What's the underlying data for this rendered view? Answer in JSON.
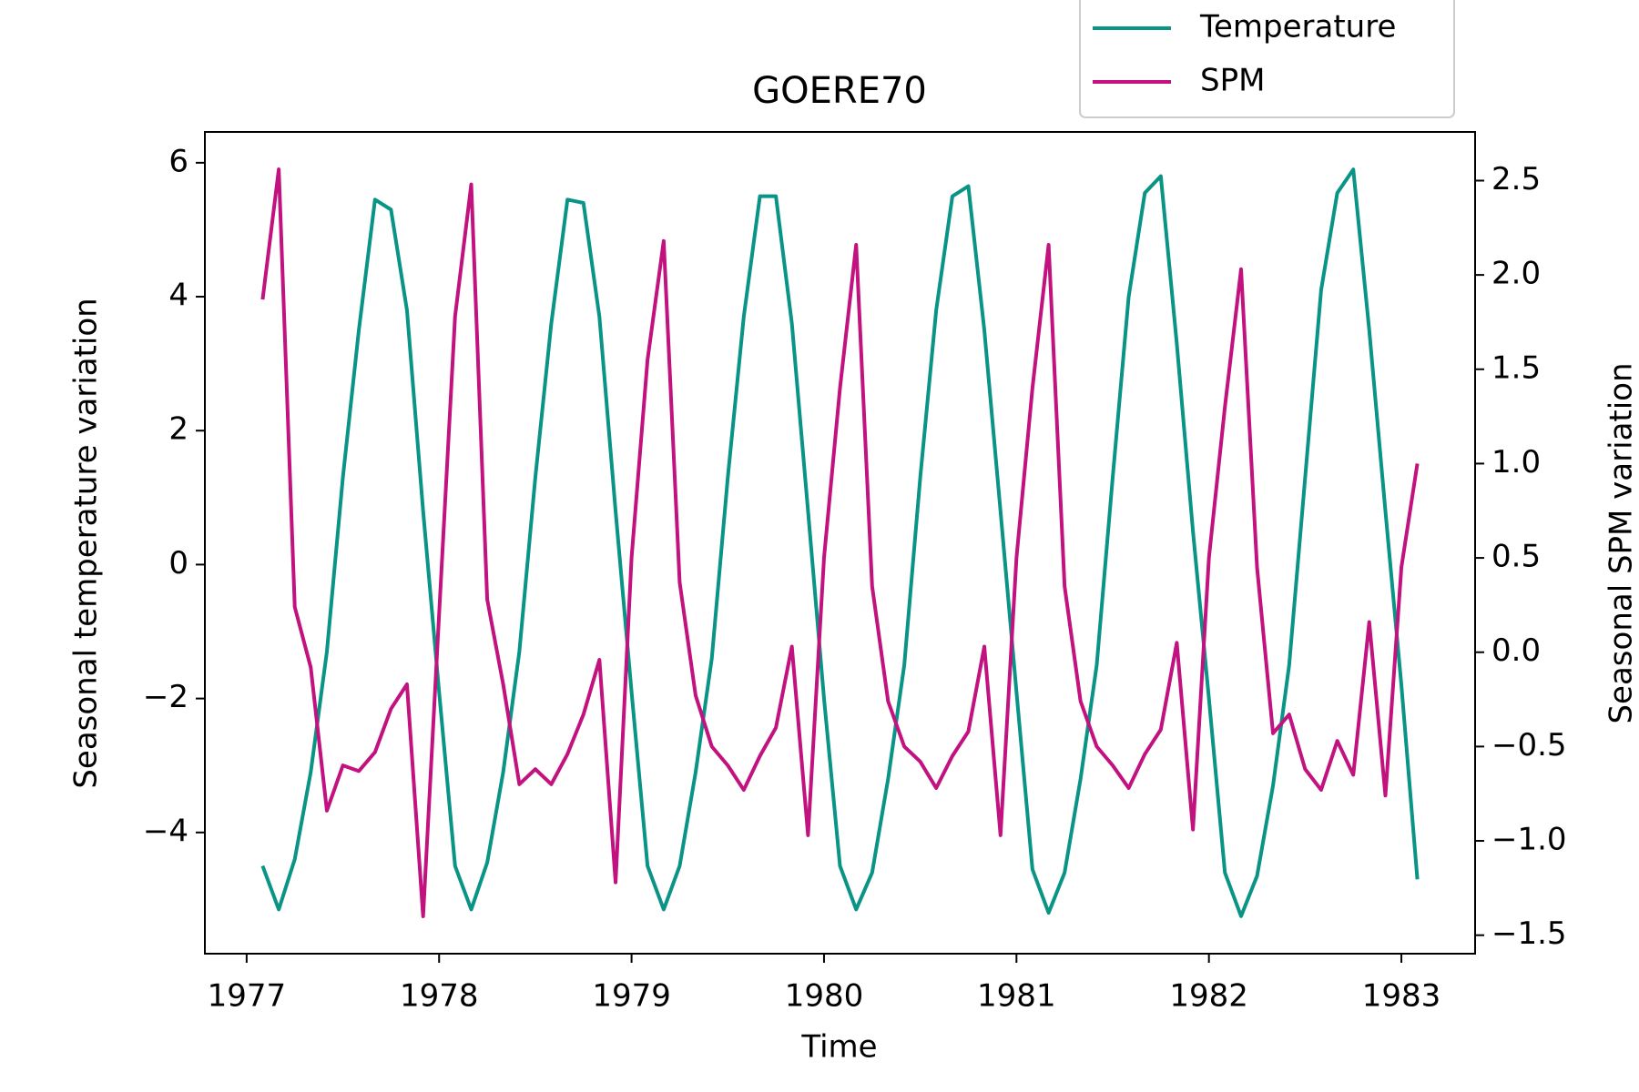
{
  "chart_data": {
    "type": "line",
    "title": "GOERE70",
    "xlabel": "Time",
    "ylabel": "Seasonal temperature variation",
    "y2label": "Seasonal SPM variation",
    "x": [
      1977.083,
      1977.167,
      1977.25,
      1977.333,
      1977.417,
      1977.5,
      1977.583,
      1977.667,
      1977.75,
      1977.833,
      1977.917,
      1978,
      1978.083,
      1978.167,
      1978.25,
      1978.333,
      1978.417,
      1978.5,
      1978.583,
      1978.667,
      1978.75,
      1978.833,
      1978.917,
      1979,
      1979.083,
      1979.167,
      1979.25,
      1979.333,
      1979.417,
      1979.5,
      1979.583,
      1979.667,
      1979.75,
      1979.833,
      1979.917,
      1980,
      1980.083,
      1980.167,
      1980.25,
      1980.333,
      1980.417,
      1980.5,
      1980.583,
      1980.667,
      1980.75,
      1980.833,
      1980.917,
      1981,
      1981.083,
      1981.167,
      1981.25,
      1981.333,
      1981.417,
      1981.5,
      1981.583,
      1981.667,
      1981.75,
      1981.833,
      1981.917,
      1982,
      1982.083,
      1982.167,
      1982.25,
      1982.333,
      1982.417,
      1982.5,
      1982.583,
      1982.667,
      1982.75,
      1982.833,
      1982.917,
      1983,
      1983.083
    ],
    "series": [
      {
        "name": "Temperature",
        "color": "#0a9486",
        "axis": "y",
        "values": [
          -4.5,
          -5.15,
          -4.4,
          -3.1,
          -1.3,
          1.3,
          3.5,
          5.45,
          5.3,
          3.8,
          0.8,
          -1.9,
          -4.5,
          -5.15,
          -4.45,
          -3.1,
          -1.3,
          1.3,
          3.6,
          5.45,
          5.4,
          3.7,
          0.8,
          -1.9,
          -4.5,
          -5.15,
          -4.5,
          -3.1,
          -1.4,
          1.3,
          3.7,
          5.5,
          5.5,
          3.6,
          0.8,
          -2,
          -4.5,
          -5.15,
          -4.6,
          -3.2,
          -1.5,
          1.3,
          3.8,
          5.5,
          5.65,
          3.5,
          0.8,
          -1.9,
          -4.55,
          -5.2,
          -4.6,
          -3.2,
          -1.5,
          1.3,
          4.0,
          5.55,
          5.8,
          3.3,
          0.5,
          -2,
          -4.6,
          -5.25,
          -4.65,
          -3.3,
          -1.5,
          1.3,
          4.1,
          5.55,
          5.9,
          3.5,
          0.8,
          -1.8,
          -4.7
        ]
      },
      {
        "name": "SPM",
        "color": "#c2127f",
        "axis": "y2",
        "values": [
          1.87,
          2.56,
          0.24,
          -0.08,
          -0.84,
          -0.6,
          -0.63,
          -0.53,
          -0.3,
          -0.17,
          -1.4,
          0.2,
          1.78,
          2.48,
          0.28,
          -0.17,
          -0.7,
          -0.62,
          -0.7,
          -0.54,
          -0.33,
          -0.04,
          -1.22,
          0.5,
          1.55,
          2.18,
          0.37,
          -0.23,
          -0.5,
          -0.6,
          -0.73,
          -0.55,
          -0.4,
          0.03,
          -0.97,
          0.5,
          1.4,
          2.16,
          0.35,
          -0.26,
          -0.5,
          -0.58,
          -0.72,
          -0.55,
          -0.42,
          0.03,
          -0.97,
          0.5,
          1.4,
          2.16,
          0.35,
          -0.26,
          -0.5,
          -0.6,
          -0.72,
          -0.54,
          -0.41,
          0.05,
          -0.94,
          0.5,
          1.3,
          2.03,
          0.45,
          -0.43,
          -0.33,
          -0.62,
          -0.73,
          -0.47,
          -0.65,
          0.16,
          -0.76,
          0.45,
          1.0
        ]
      }
    ],
    "xlim": [
      1976.783,
      1983.383
    ],
    "xticks": [
      1977,
      1978,
      1979,
      1980,
      1981,
      1982,
      1983
    ],
    "ylim": [
      -5.81,
      6.46
    ],
    "yticks": [
      {
        "value": -4,
        "label": "−4"
      },
      {
        "value": -2,
        "label": "−2"
      },
      0,
      2,
      4,
      6
    ],
    "y2lim": [
      -1.598,
      2.758
    ],
    "y2ticks": [
      {
        "value": -1.5,
        "label": "−1.5"
      },
      {
        "value": -1.0,
        "label": "−1.0"
      },
      {
        "value": -0.5,
        "label": "−0.5"
      },
      {
        "value": 0,
        "label": "0.0"
      },
      0.5,
      {
        "value": 1,
        "label": "1.0"
      },
      1.5,
      {
        "value": 2,
        "label": "2.0"
      },
      2.5
    ],
    "grid": false,
    "legend": "upper right"
  }
}
